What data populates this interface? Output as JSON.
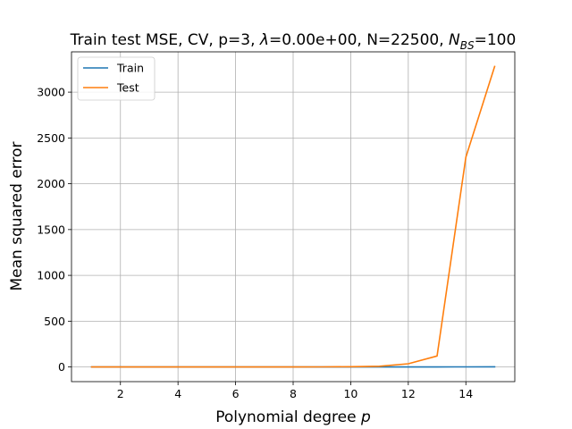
{
  "chart_data": {
    "type": "line",
    "title_main": "Train test MSE, CV, p=3, ",
    "title_lambda_symbol": "λ",
    "title_lambda_value": "=0.00e+00, N=22500, ",
    "title_nbs_symbol": "N",
    "title_nbs_subscript": "BS",
    "title_nbs_value": "=100",
    "xlabel_text": "Polynomial degree ",
    "xlabel_symbol": "p",
    "ylabel": "Mean squared error",
    "xlim": [
      0.3,
      15.7
    ],
    "ylim": [
      -160,
      3440
    ],
    "x_ticks": [
      2,
      4,
      6,
      8,
      10,
      12,
      14
    ],
    "y_ticks": [
      0,
      500,
      1000,
      1500,
      2000,
      2500,
      3000
    ],
    "grid": true,
    "legend_position": "top-left",
    "x": [
      1,
      2,
      3,
      4,
      5,
      6,
      7,
      8,
      9,
      10,
      11,
      12,
      13,
      14,
      15
    ],
    "series": [
      {
        "name": "Train",
        "color": "#1f77b4",
        "values": [
          0.5,
          0.5,
          0.5,
          0.5,
          0.5,
          0.5,
          0.5,
          0.5,
          0.5,
          0.5,
          0.5,
          0.6,
          0.7,
          1.0,
          1.5
        ]
      },
      {
        "name": "Test",
        "color": "#ff7f0e",
        "values": [
          0.5,
          0.5,
          0.5,
          0.5,
          0.5,
          0.5,
          0.5,
          0.6,
          1.0,
          3.0,
          8.0,
          35,
          120,
          2290,
          3280
        ]
      }
    ]
  }
}
